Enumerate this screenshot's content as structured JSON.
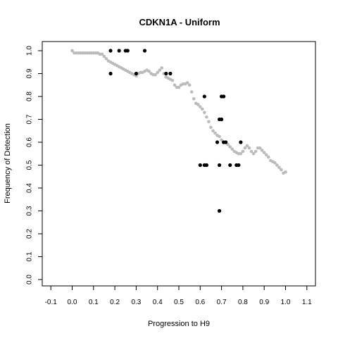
{
  "chart_data": {
    "type": "scatter",
    "title": "CDKN1A - Uniform",
    "xlabel": "Progression to H9",
    "ylabel": "Frequency of Detection",
    "xlim": [
      -0.1,
      1.1
    ],
    "ylim": [
      0.0,
      1.0
    ],
    "x_ticks": [
      "-0.1",
      "0.0",
      "0.1",
      "0.2",
      "0.3",
      "0.4",
      "0.5",
      "0.6",
      "0.7",
      "0.8",
      "0.9",
      "1.0",
      "1.1"
    ],
    "y_ticks": [
      "0.0",
      "0.1",
      "0.2",
      "0.3",
      "0.4",
      "0.5",
      "0.6",
      "0.7",
      "0.8",
      "0.9",
      "1.0"
    ],
    "grid": false,
    "series": [
      {
        "color": "#bbbbbb",
        "points": [
          [
            0.0,
            1.0
          ],
          [
            0.01,
            0.99
          ],
          [
            0.02,
            0.99
          ],
          [
            0.03,
            0.99
          ],
          [
            0.04,
            0.99
          ],
          [
            0.05,
            0.99
          ],
          [
            0.06,
            0.99
          ],
          [
            0.07,
            0.99
          ],
          [
            0.08,
            0.99
          ],
          [
            0.09,
            0.99
          ],
          [
            0.1,
            0.99
          ],
          [
            0.11,
            0.99
          ],
          [
            0.12,
            0.99
          ],
          [
            0.13,
            0.985
          ],
          [
            0.14,
            0.985
          ],
          [
            0.15,
            0.975
          ],
          [
            0.16,
            0.965
          ],
          [
            0.17,
            0.955
          ],
          [
            0.18,
            0.95
          ],
          [
            0.19,
            0.945
          ],
          [
            0.2,
            0.94
          ],
          [
            0.21,
            0.935
          ],
          [
            0.22,
            0.93
          ],
          [
            0.23,
            0.925
          ],
          [
            0.24,
            0.92
          ],
          [
            0.25,
            0.915
          ],
          [
            0.26,
            0.91
          ],
          [
            0.27,
            0.905
          ],
          [
            0.28,
            0.9
          ],
          [
            0.29,
            0.895
          ],
          [
            0.3,
            0.89
          ],
          [
            0.31,
            0.9
          ],
          [
            0.32,
            0.905
          ],
          [
            0.33,
            0.905
          ],
          [
            0.34,
            0.91
          ],
          [
            0.35,
            0.915
          ],
          [
            0.36,
            0.91
          ],
          [
            0.37,
            0.9
          ],
          [
            0.38,
            0.895
          ],
          [
            0.39,
            0.895
          ],
          [
            0.4,
            0.905
          ],
          [
            0.41,
            0.915
          ],
          [
            0.42,
            0.925
          ],
          [
            0.43,
            0.9
          ],
          [
            0.44,
            0.885
          ],
          [
            0.45,
            0.88
          ],
          [
            0.46,
            0.875
          ],
          [
            0.47,
            0.87
          ],
          [
            0.48,
            0.85
          ],
          [
            0.49,
            0.84
          ],
          [
            0.5,
            0.84
          ],
          [
            0.51,
            0.85
          ],
          [
            0.52,
            0.855
          ],
          [
            0.53,
            0.855
          ],
          [
            0.54,
            0.86
          ],
          [
            0.55,
            0.85
          ],
          [
            0.56,
            0.82
          ],
          [
            0.57,
            0.79
          ],
          [
            0.58,
            0.77
          ],
          [
            0.59,
            0.765
          ],
          [
            0.6,
            0.755
          ],
          [
            0.61,
            0.745
          ],
          [
            0.62,
            0.73
          ],
          [
            0.63,
            0.71
          ],
          [
            0.64,
            0.69
          ],
          [
            0.65,
            0.665
          ],
          [
            0.66,
            0.65
          ],
          [
            0.67,
            0.64
          ],
          [
            0.68,
            0.63
          ],
          [
            0.69,
            0.625
          ],
          [
            0.7,
            0.61
          ],
          [
            0.71,
            0.6
          ],
          [
            0.72,
            0.6
          ],
          [
            0.73,
            0.59
          ],
          [
            0.74,
            0.58
          ],
          [
            0.75,
            0.57
          ],
          [
            0.76,
            0.56
          ],
          [
            0.77,
            0.555
          ],
          [
            0.78,
            0.55
          ],
          [
            0.79,
            0.55
          ],
          [
            0.8,
            0.56
          ],
          [
            0.81,
            0.575
          ],
          [
            0.82,
            0.585
          ],
          [
            0.83,
            0.575
          ],
          [
            0.84,
            0.56
          ],
          [
            0.85,
            0.55
          ],
          [
            0.86,
            0.56
          ],
          [
            0.87,
            0.575
          ],
          [
            0.88,
            0.575
          ],
          [
            0.89,
            0.565
          ],
          [
            0.9,
            0.555
          ],
          [
            0.91,
            0.545
          ],
          [
            0.92,
            0.535
          ],
          [
            0.93,
            0.52
          ],
          [
            0.94,
            0.515
          ],
          [
            0.95,
            0.51
          ],
          [
            0.96,
            0.5
          ],
          [
            0.97,
            0.49
          ],
          [
            0.98,
            0.48
          ],
          [
            0.99,
            0.465
          ],
          [
            1.0,
            0.47
          ]
        ]
      },
      {
        "color": "#000000",
        "points": [
          [
            0.18,
            1.0
          ],
          [
            0.18,
            0.9
          ],
          [
            0.22,
            1.0
          ],
          [
            0.25,
            1.0
          ],
          [
            0.26,
            1.0
          ],
          [
            0.3,
            0.9
          ],
          [
            0.34,
            1.0
          ],
          [
            0.44,
            0.9
          ],
          [
            0.46,
            0.9
          ],
          [
            0.6,
            0.5
          ],
          [
            0.62,
            0.8
          ],
          [
            0.62,
            0.5
          ],
          [
            0.63,
            0.5
          ],
          [
            0.68,
            0.6
          ],
          [
            0.69,
            0.5
          ],
          [
            0.69,
            0.7
          ],
          [
            0.69,
            0.3
          ],
          [
            0.7,
            0.8
          ],
          [
            0.7,
            0.7
          ],
          [
            0.71,
            0.8
          ],
          [
            0.71,
            0.6
          ],
          [
            0.72,
            0.6
          ],
          [
            0.74,
            0.5
          ],
          [
            0.77,
            0.5
          ],
          [
            0.78,
            0.5
          ],
          [
            0.79,
            0.6
          ]
        ]
      }
    ]
  }
}
